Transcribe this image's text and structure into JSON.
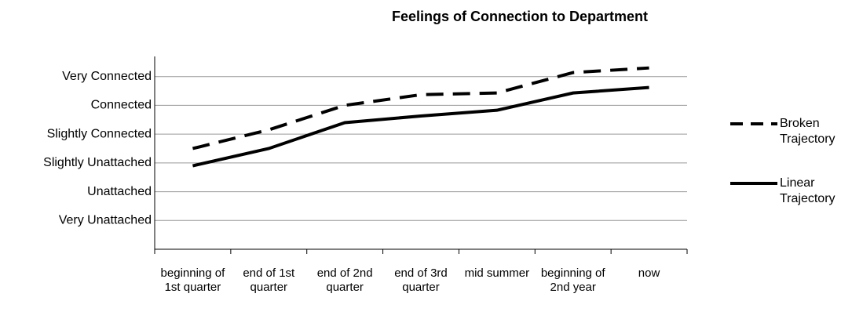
{
  "chart_data": {
    "type": "line",
    "title": "Feelings of Connection to Department",
    "categories": [
      "beginning of 1st quarter",
      "end of 1st quarter",
      "end of 2nd quarter",
      "end of 3rd quarter",
      "mid summer",
      "beginning of 2nd year",
      "now"
    ],
    "series": [
      {
        "name": "Broken Trajectory",
        "color": "#000000",
        "style": "dashed",
        "values": [
          3.5,
          4.15,
          5.0,
          5.37,
          5.43,
          6.14,
          6.3
        ]
      },
      {
        "name": "Linear Trajectory",
        "color": "#000000",
        "style": "solid",
        "values": [
          2.9,
          3.5,
          4.4,
          4.63,
          4.83,
          5.43,
          5.62
        ]
      }
    ],
    "ylim": [
      0,
      6.7
    ],
    "yticks": [
      {
        "value": 1,
        "label": "Very Unattached"
      },
      {
        "value": 2,
        "label": "Unattached"
      },
      {
        "value": 3,
        "label": "Slightly Unattached"
      },
      {
        "value": 4,
        "label": "Slightly Connected"
      },
      {
        "value": 5,
        "label": "Connected"
      },
      {
        "value": 6,
        "label": "Very Connected"
      }
    ],
    "grid": true,
    "legend": "right"
  }
}
